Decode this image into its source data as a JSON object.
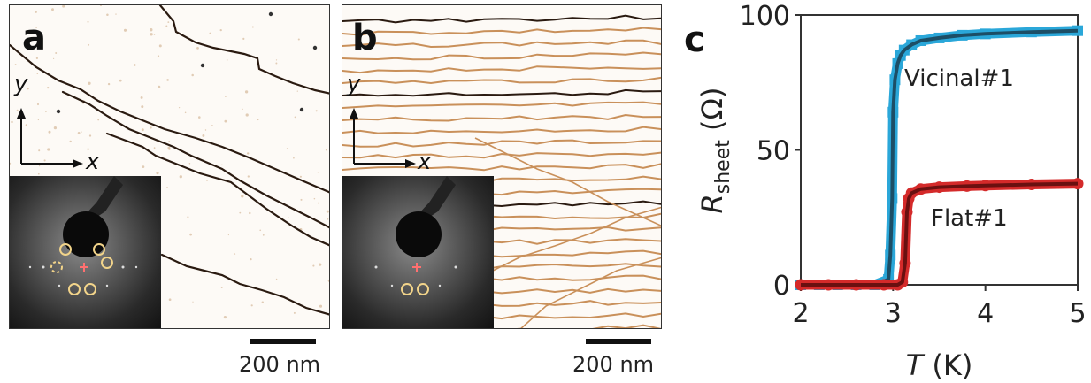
{
  "panels": {
    "a": {
      "label": "a",
      "axis_y": "y",
      "axis_x": "x",
      "scale_text": "200 nm"
    },
    "b": {
      "label": "b",
      "axis_y": "y",
      "axis_x": "x",
      "scale_text": "200 nm"
    },
    "c": {
      "label": "c"
    }
  },
  "colors": {
    "step_dark": "#2a1a10",
    "step_brown": "#c9905a",
    "vicinal_data": "#2aa7d9",
    "vicinal_fit": "#1c4e66",
    "flat_data": "#d42a2a",
    "flat_fit": "#6a1010",
    "inset_circle": "#f2d48a",
    "inset_cross": "#ff7070"
  },
  "chart_data": {
    "type": "line",
    "xlabel_italic": "T",
    "xlabel_unit": "(K)",
    "ylabel_italic": "R",
    "ylabel_sub": "sheet",
    "ylabel_unit": "(Ω)",
    "xlim": [
      2,
      5
    ],
    "ylim": [
      0,
      100
    ],
    "xticks": [
      "2",
      "3",
      "4",
      "5"
    ],
    "yticks": [
      "0",
      "50",
      "100"
    ],
    "series": [
      {
        "name": "Vicinal#1",
        "marker": "square",
        "x": [
          2.0,
          2.2,
          2.4,
          2.6,
          2.8,
          2.95,
          2.97,
          2.99,
          3.0,
          3.02,
          3.05,
          3.08,
          3.12,
          3.2,
          3.3,
          3.5,
          3.75,
          4.0,
          4.5,
          5.0
        ],
        "y": [
          0,
          0,
          0,
          0,
          0,
          2,
          11,
          32,
          64,
          76,
          82,
          85,
          87,
          89,
          90.5,
          91.5,
          92.5,
          93,
          93.7,
          94.2
        ]
      },
      {
        "name": "Flat#1",
        "marker": "circle",
        "x": [
          2.0,
          2.3,
          2.6,
          2.9,
          3.05,
          3.1,
          3.13,
          3.15,
          3.17,
          3.2,
          3.3,
          3.5,
          3.8,
          4.0,
          4.5,
          5.0
        ],
        "y": [
          0,
          0,
          0,
          0,
          0,
          1,
          8,
          27,
          32,
          34,
          35.5,
          36.2,
          36.6,
          36.8,
          37.2,
          37.5
        ]
      }
    ]
  }
}
